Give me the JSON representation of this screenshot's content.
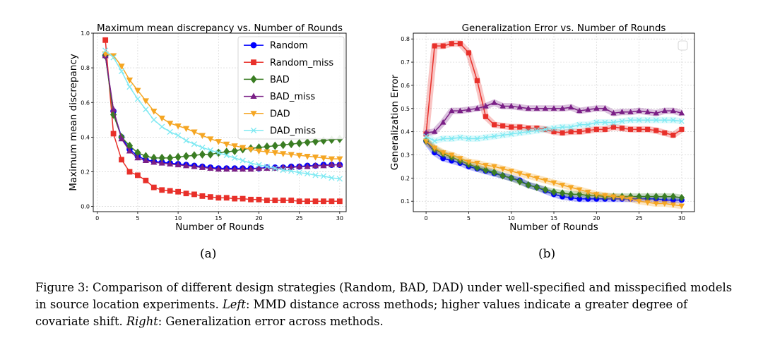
{
  "chart_data": [
    {
      "id": "a",
      "type": "line",
      "title": "Maximum mean discrepancy vs. Number of Rounds",
      "xlabel": "Number of Rounds",
      "ylabel": "Maximum mean discrepancy",
      "xlim": [
        -0.5,
        30.8
      ],
      "ylim": [
        -0.03,
        1.0
      ],
      "xticks": [
        0,
        5,
        10,
        15,
        20,
        25,
        30
      ],
      "yticks": [
        0.0,
        0.2,
        0.4,
        0.6,
        0.8,
        1.0
      ],
      "ytick_labels": [
        "0.0",
        "0.2",
        "0.4",
        "0.6",
        "0.8",
        "1.0"
      ],
      "grid": true,
      "legend": "top-right",
      "x": [
        1,
        2,
        3,
        4,
        5,
        6,
        7,
        8,
        9,
        10,
        11,
        12,
        13,
        14,
        15,
        16,
        17,
        18,
        19,
        20,
        21,
        22,
        23,
        24,
        25,
        26,
        27,
        28,
        29,
        30
      ],
      "series": [
        {
          "name": "Random",
          "color": "#0000ff",
          "marker": "circle",
          "values": [
            0.87,
            0.55,
            0.4,
            0.33,
            0.29,
            0.27,
            0.26,
            0.255,
            0.25,
            0.245,
            0.24,
            0.235,
            0.23,
            0.225,
            0.22,
            0.22,
            0.22,
            0.22,
            0.22,
            0.22,
            0.225,
            0.225,
            0.225,
            0.23,
            0.23,
            0.235,
            0.235,
            0.24,
            0.24,
            0.24
          ]
        },
        {
          "name": "Random_miss",
          "color": "#e8302a",
          "marker": "square",
          "values": [
            0.96,
            0.42,
            0.27,
            0.2,
            0.18,
            0.15,
            0.11,
            0.095,
            0.09,
            0.085,
            0.075,
            0.07,
            0.06,
            0.055,
            0.05,
            0.05,
            0.045,
            0.045,
            0.04,
            0.04,
            0.035,
            0.035,
            0.035,
            0.035,
            0.03,
            0.03,
            0.03,
            0.03,
            0.03,
            0.03
          ]
        },
        {
          "name": "BAD",
          "color": "#3a7d23",
          "marker": "diamond",
          "values": [
            0.87,
            0.53,
            0.4,
            0.35,
            0.31,
            0.29,
            0.28,
            0.28,
            0.28,
            0.285,
            0.29,
            0.295,
            0.3,
            0.3,
            0.31,
            0.315,
            0.32,
            0.33,
            0.335,
            0.34,
            0.345,
            0.35,
            0.355,
            0.36,
            0.365,
            0.37,
            0.375,
            0.38,
            0.385,
            0.39
          ]
        },
        {
          "name": "BAD_miss",
          "color": "#7a1f86",
          "marker": "triangle-up",
          "values": [
            0.87,
            0.56,
            0.39,
            0.32,
            0.28,
            0.265,
            0.255,
            0.25,
            0.245,
            0.24,
            0.235,
            0.23,
            0.225,
            0.22,
            0.215,
            0.215,
            0.215,
            0.215,
            0.215,
            0.22,
            0.22,
            0.22,
            0.225,
            0.225,
            0.23,
            0.23,
            0.235,
            0.235,
            0.24,
            0.24
          ]
        },
        {
          "name": "DAD",
          "color": "#f5a623",
          "marker": "triangle-down",
          "values": [
            0.88,
            0.87,
            0.81,
            0.73,
            0.67,
            0.61,
            0.55,
            0.51,
            0.48,
            0.465,
            0.45,
            0.43,
            0.41,
            0.39,
            0.375,
            0.36,
            0.35,
            0.34,
            0.33,
            0.32,
            0.315,
            0.31,
            0.305,
            0.3,
            0.295,
            0.29,
            0.285,
            0.28,
            0.275,
            0.275
          ]
        },
        {
          "name": "DAD_miss",
          "color": "#7fe9f2",
          "marker": "x",
          "values": [
            0.9,
            0.86,
            0.78,
            0.69,
            0.62,
            0.56,
            0.5,
            0.46,
            0.43,
            0.41,
            0.38,
            0.36,
            0.34,
            0.325,
            0.31,
            0.295,
            0.28,
            0.265,
            0.25,
            0.24,
            0.23,
            0.22,
            0.21,
            0.205,
            0.195,
            0.19,
            0.18,
            0.175,
            0.165,
            0.16
          ]
        }
      ]
    },
    {
      "id": "b",
      "type": "line",
      "title": "Generalization Error vs. Number of Rounds",
      "xlabel": "Number of Rounds",
      "ylabel": "Generalization Error",
      "xlim": [
        -1.5,
        31.5
      ],
      "ylim": [
        0.055,
        0.825
      ],
      "xticks": [
        0,
        5,
        10,
        15,
        20,
        25,
        30
      ],
      "yticks": [
        0.1,
        0.2,
        0.3,
        0.4,
        0.5,
        0.6,
        0.7,
        0.8
      ],
      "ytick_labels": [
        "0.1",
        "0.2",
        "0.3",
        "0.4",
        "0.5",
        "0.6",
        "0.7",
        "0.8"
      ],
      "grid": true,
      "legend": "top-right (empty box)",
      "x": [
        0,
        1,
        2,
        3,
        4,
        5,
        6,
        7,
        8,
        9,
        10,
        11,
        12,
        13,
        14,
        15,
        16,
        17,
        18,
        19,
        20,
        21,
        22,
        23,
        24,
        25,
        26,
        27,
        28,
        29,
        30
      ],
      "series": [
        {
          "name": "Random",
          "color": "#0000ff",
          "marker": "circle",
          "values": [
            0.36,
            0.31,
            0.285,
            0.275,
            0.265,
            0.25,
            0.24,
            0.23,
            0.22,
            0.21,
            0.2,
            0.19,
            0.17,
            0.16,
            0.145,
            0.13,
            0.12,
            0.115,
            0.11,
            0.11,
            0.11,
            0.11,
            0.11,
            0.11,
            0.11,
            0.11,
            0.11,
            0.11,
            0.105,
            0.105,
            0.105
          ]
        },
        {
          "name": "Random_miss",
          "color": "#e8302a",
          "marker": "square",
          "values": [
            0.39,
            0.77,
            0.77,
            0.78,
            0.78,
            0.74,
            0.62,
            0.465,
            0.43,
            0.425,
            0.42,
            0.42,
            0.415,
            0.415,
            0.41,
            0.4,
            0.395,
            0.4,
            0.4,
            0.405,
            0.41,
            0.41,
            0.42,
            0.415,
            0.41,
            0.41,
            0.41,
            0.405,
            0.395,
            0.385,
            0.41
          ]
        },
        {
          "name": "BAD",
          "color": "#3a7d23",
          "marker": "diamond",
          "values": [
            0.36,
            0.325,
            0.305,
            0.29,
            0.275,
            0.26,
            0.245,
            0.235,
            0.225,
            0.21,
            0.2,
            0.185,
            0.17,
            0.16,
            0.15,
            0.14,
            0.135,
            0.13,
            0.13,
            0.125,
            0.125,
            0.12,
            0.12,
            0.12,
            0.12,
            0.12,
            0.12,
            0.12,
            0.12,
            0.12,
            0.115
          ]
        },
        {
          "name": "BAD_miss",
          "color": "#7a1f86",
          "marker": "triangle-up",
          "values": [
            0.395,
            0.4,
            0.44,
            0.49,
            0.49,
            0.495,
            0.5,
            0.51,
            0.525,
            0.51,
            0.51,
            0.505,
            0.5,
            0.5,
            0.5,
            0.5,
            0.5,
            0.505,
            0.49,
            0.495,
            0.5,
            0.5,
            0.48,
            0.485,
            0.485,
            0.49,
            0.485,
            0.48,
            0.49,
            0.49,
            0.48
          ]
        },
        {
          "name": "DAD",
          "color": "#f5a623",
          "marker": "triangle-down",
          "values": [
            0.36,
            0.33,
            0.31,
            0.3,
            0.285,
            0.27,
            0.265,
            0.255,
            0.25,
            0.24,
            0.23,
            0.22,
            0.21,
            0.2,
            0.19,
            0.18,
            0.17,
            0.16,
            0.15,
            0.14,
            0.13,
            0.125,
            0.12,
            0.115,
            0.11,
            0.1,
            0.095,
            0.09,
            0.09,
            0.085,
            0.08
          ]
        },
        {
          "name": "DAD_miss",
          "color": "#7fe9f2",
          "marker": "x",
          "values": [
            0.38,
            0.36,
            0.37,
            0.37,
            0.375,
            0.37,
            0.37,
            0.375,
            0.38,
            0.385,
            0.39,
            0.395,
            0.4,
            0.405,
            0.41,
            0.415,
            0.42,
            0.42,
            0.43,
            0.43,
            0.44,
            0.44,
            0.44,
            0.445,
            0.45,
            0.45,
            0.45,
            0.45,
            0.45,
            0.45,
            0.445
          ]
        }
      ]
    }
  ],
  "sublabels": {
    "a": "(a)",
    "b": "(b)"
  },
  "caption": {
    "part1": "Figure 3: Comparison of different design strategies (Random, BAD, DAD) under well-specified and misspecified models in source location experiments. ",
    "left_label": "Left",
    "part2": ": MMD distance across methods; higher values indicate a greater degree of covariate shift. ",
    "right_label": "Right",
    "part3": ": Generalization error across methods."
  }
}
